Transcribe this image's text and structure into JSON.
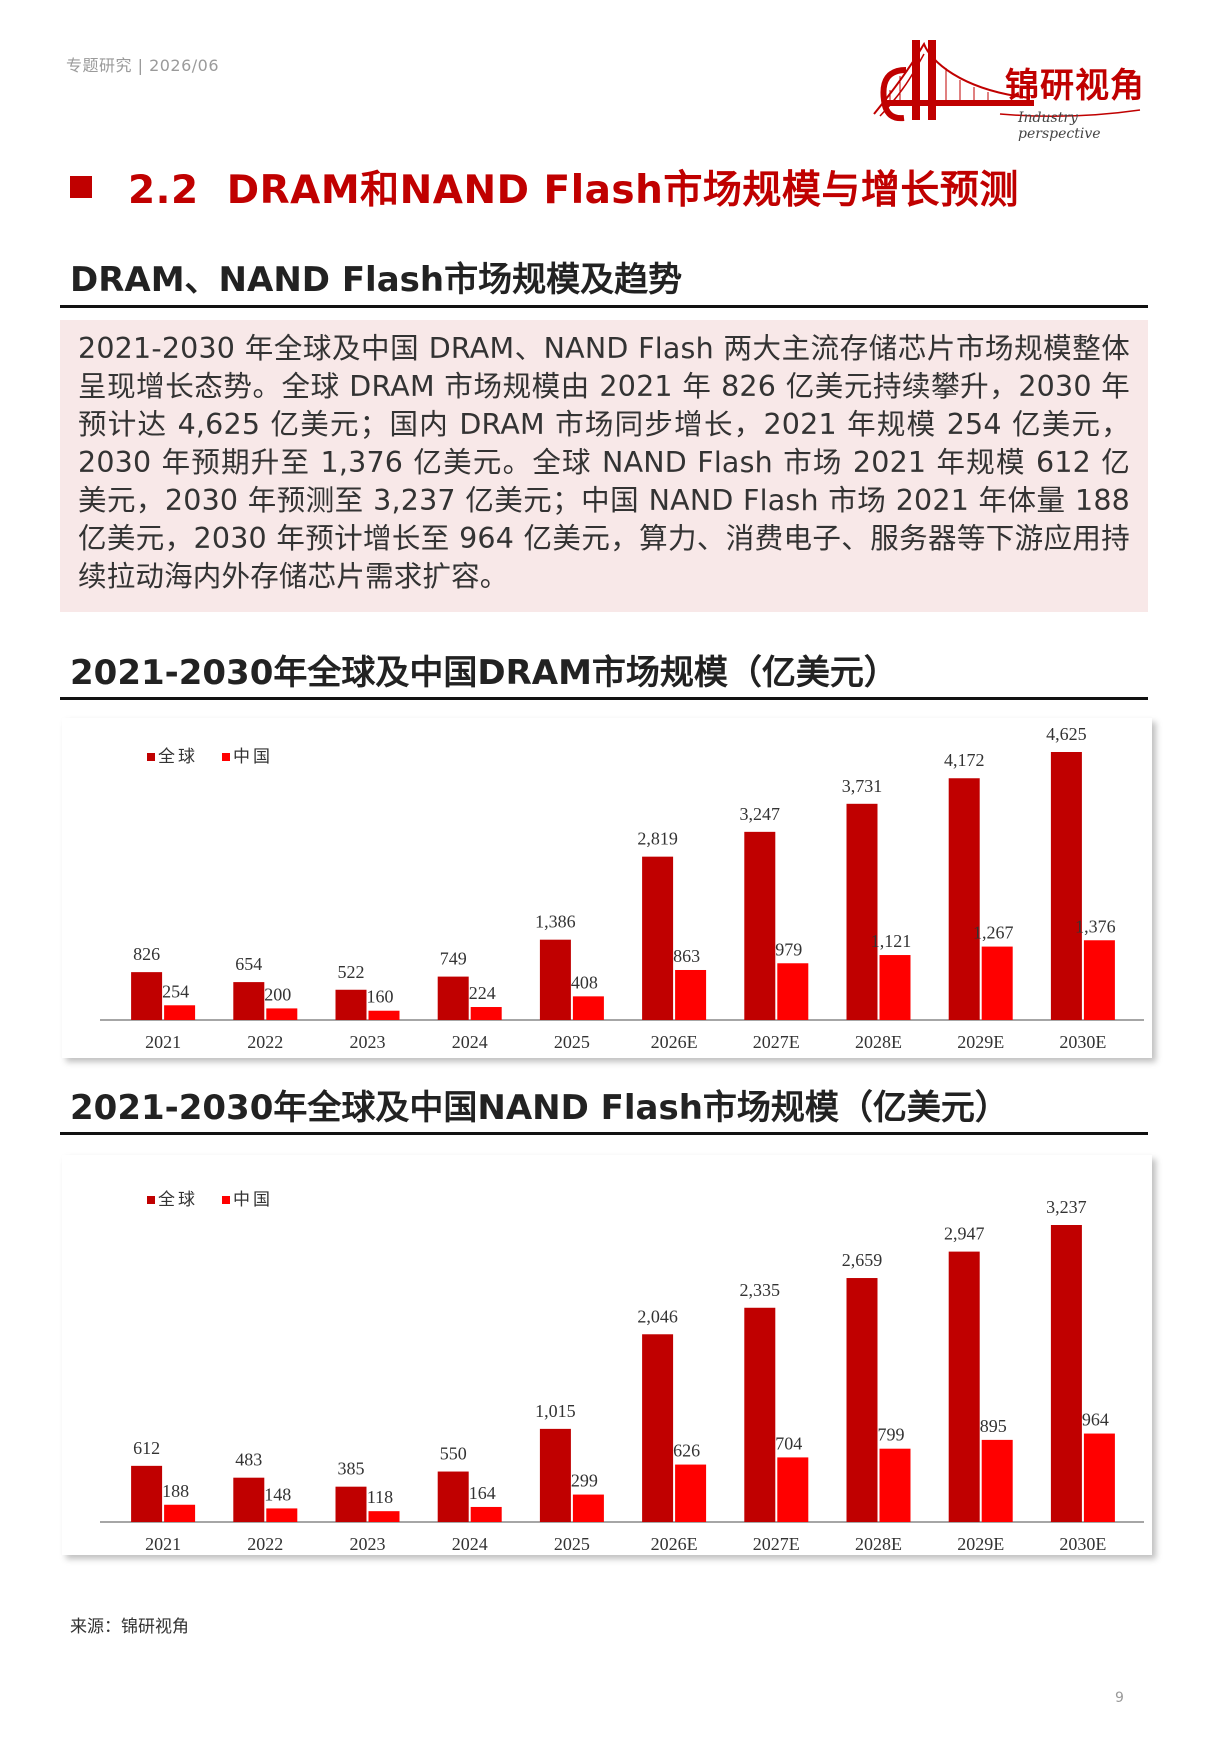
{
  "header": {
    "text": "专题研究 | 2026/06"
  },
  "logo": {
    "name": "锦研视角",
    "subtitle": "Industry perspective"
  },
  "section": {
    "number": "2.2",
    "title": "DRAM和NAND Flash市场规模与增长预测"
  },
  "subhead": "DRAM、NAND Flash市场规模及趋势",
  "summary": "2021-2030 年全球及中国 DRAM、NAND Flash 两大主流存储芯片市场规模整体呈现增长态势。全球 DRAM 市场规模由 2021 年 826 亿美元持续攀升，2030 年预计达 4,625 亿美元；国内 DRAM 市场同步增长，2021 年规模 254 亿美元，2030 年预期升至 1,376 亿美元。全球 NAND Flash 市场 2021 年规模 612 亿美元，2030 年预测至 3,237 亿美元；中国 NAND Flash 市场 2021 年体量 188 亿美元，2030 年预计增长至 964 亿美元，算力、消费电子、服务器等下游应用持续拉动海内外存储芯片需求扩容。",
  "colors": {
    "global": "#c00000",
    "china": "#ff0000",
    "accent": "#c00000"
  },
  "chart_data": [
    {
      "type": "bar",
      "title": "2021-2030年全球及中国DRAM市场规模（亿美元）",
      "categories": [
        "2021",
        "2022",
        "2023",
        "2024",
        "2025",
        "2026E",
        "2027E",
        "2028E",
        "2029E",
        "2030E"
      ],
      "series": [
        {
          "name": "全球",
          "values": [
            826,
            654,
            522,
            749,
            1386,
            2819,
            3247,
            3731,
            4172,
            4625
          ],
          "labels": [
            "826",
            "654",
            "522",
            "749",
            "1,386",
            "2,819",
            "3,247",
            "3,731",
            "4,172",
            "4,625"
          ]
        },
        {
          "name": "中国",
          "values": [
            254,
            200,
            160,
            224,
            408,
            863,
            979,
            1121,
            1267,
            1376
          ],
          "labels": [
            "254",
            "200",
            "160",
            "224",
            "408",
            "863",
            "979",
            "1,121",
            "1,267",
            "1,376"
          ]
        }
      ],
      "ylim": [
        0,
        4625
      ],
      "legend": "top-left",
      "grid": false
    },
    {
      "type": "bar",
      "title": "2021-2030年全球及中国NAND Flash市场规模（亿美元）",
      "categories": [
        "2021",
        "2022",
        "2023",
        "2024",
        "2025",
        "2026E",
        "2027E",
        "2028E",
        "2029E",
        "2030E"
      ],
      "series": [
        {
          "name": "全球",
          "values": [
            612,
            483,
            385,
            550,
            1015,
            2046,
            2335,
            2659,
            2947,
            3237
          ],
          "labels": [
            "612",
            "483",
            "385",
            "550",
            "1,015",
            "2,046",
            "2,335",
            "2,659",
            "2,947",
            "3,237"
          ]
        },
        {
          "name": "中国",
          "values": [
            188,
            148,
            118,
            164,
            299,
            626,
            704,
            799,
            895,
            964
          ],
          "labels": [
            "188",
            "148",
            "118",
            "164",
            "299",
            "626",
            "704",
            "799",
            "895",
            "964"
          ]
        }
      ],
      "ylim": [
        0,
        3237
      ],
      "legend": "top-left",
      "grid": false
    }
  ],
  "source": "来源：锦研视角",
  "page_number": "9"
}
